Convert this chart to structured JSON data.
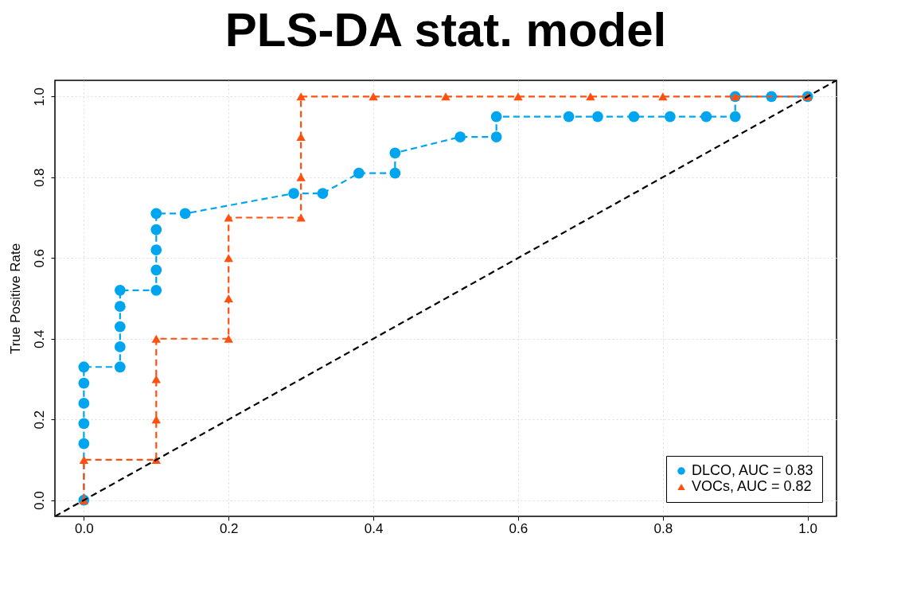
{
  "chart_data": {
    "type": "line",
    "title": "PLS-DA stat. model",
    "ylabel": "True Positive Rate",
    "xlim": [
      -0.04,
      1.04
    ],
    "ylim": [
      -0.04,
      1.04
    ],
    "xticks": [
      {
        "value": 0,
        "label": "0.0"
      },
      {
        "value": 0.2,
        "label": "0.2"
      },
      {
        "value": 0.4,
        "label": "0.4"
      },
      {
        "value": 0.6,
        "label": "0.6"
      },
      {
        "value": 0.8,
        "label": "0.8"
      },
      {
        "value": 1,
        "label": "1.0"
      }
    ],
    "yticks": [
      {
        "value": 0,
        "label": "0.0"
      },
      {
        "value": 0.2,
        "label": "0.2"
      },
      {
        "value": 0.4,
        "label": "0.4"
      },
      {
        "value": 0.6,
        "label": "0.6"
      },
      {
        "value": 0.8,
        "label": "0.8"
      },
      {
        "value": 1,
        "label": "1.0"
      }
    ],
    "grid": true,
    "legend": "bottom right",
    "line_style": "dashed",
    "series": [
      {
        "name": "DLCO, AUC = 0.83",
        "color": "#00a5f0",
        "marker": "circle",
        "x": [
          0,
          0,
          0,
          0,
          0,
          0,
          0.05,
          0.05,
          0.05,
          0.05,
          0.05,
          0.1,
          0.1,
          0.1,
          0.1,
          0.1,
          0.14,
          0.29,
          0.33,
          0.38,
          0.43,
          0.43,
          0.52,
          0.57,
          0.57,
          0.67,
          0.71,
          0.76,
          0.81,
          0.86,
          0.9,
          0.9,
          0.95,
          1
        ],
        "values": [
          0,
          0.14,
          0.19,
          0.24,
          0.29,
          0.33,
          0.33,
          0.38,
          0.43,
          0.48,
          0.52,
          0.52,
          0.57,
          0.62,
          0.67,
          0.71,
          0.71,
          0.76,
          0.76,
          0.81,
          0.81,
          0.86,
          0.9,
          0.9,
          0.95,
          0.95,
          0.95,
          0.95,
          0.95,
          0.95,
          0.95,
          1,
          1,
          1
        ]
      },
      {
        "name": "VOCs, AUC = 0.82",
        "color": "#ff5010",
        "marker": "triangle",
        "x": [
          0,
          0,
          0.1,
          0.1,
          0.1,
          0.1,
          0.2,
          0.2,
          0.2,
          0.2,
          0.3,
          0.3,
          0.3,
          0.3,
          0.4,
          0.5,
          0.6,
          0.7,
          0.8,
          0.9,
          1
        ],
        "values": [
          0,
          0.1,
          0.1,
          0.2,
          0.3,
          0.4,
          0.4,
          0.5,
          0.6,
          0.7,
          0.7,
          0.8,
          0.9,
          1,
          1,
          1,
          1,
          1,
          1,
          1,
          1
        ]
      },
      {
        "color": "#000000",
        "marker": "none",
        "x": [
          -0.04,
          1.04
        ],
        "values": [
          -0.04,
          1.04
        ]
      }
    ]
  }
}
